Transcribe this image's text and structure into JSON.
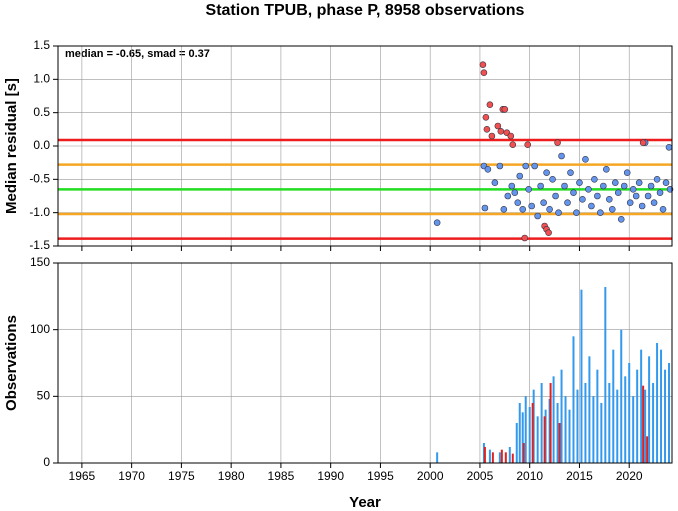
{
  "chart_data": [
    {
      "type": "scatter",
      "title": "Station TPUB, phase P, 8958 observations",
      "ylabel": "Median residual [s]",
      "annotation": "median = -0.65, smad = 0.37",
      "xlim": [
        1962.6,
        2024.3
      ],
      "xticks": [
        1965,
        1970,
        1975,
        1980,
        1985,
        1990,
        1995,
        2000,
        2005,
        2010,
        2015,
        2020
      ],
      "ylim": [
        -1.5,
        1.5
      ],
      "yticks": [
        {
          "value": -1.5,
          "label": "-1.5"
        },
        {
          "value": -1,
          "label": "-1.0"
        },
        -0.5,
        {
          "value": 0,
          "label": "0.0"
        },
        0.5,
        {
          "value": 1,
          "label": "1.0"
        },
        1.5
      ],
      "grid": true,
      "hlines": [
        {
          "value": 0.09,
          "color": "#ee1c1c"
        },
        {
          "value": -1.39,
          "color": "#ee1c1c"
        },
        {
          "value": -0.28,
          "color": "#f5a623"
        },
        {
          "value": -1.02,
          "color": "#f5a623"
        },
        {
          "value": -0.65,
          "color": "#22dd22"
        }
      ],
      "series": [
        {
          "color": "#6495ed",
          "x": [
            2000.7,
            2005.4,
            2005.5,
            2005.8,
            2006.5,
            2007,
            2007.4,
            2007.8,
            2008.2,
            2008.5,
            2008.8,
            2009,
            2009.3,
            2009.6,
            2009.9,
            2010.2,
            2010.5,
            2010.8,
            2011.1,
            2011.4,
            2011.7,
            2012,
            2012.3,
            2012.6,
            2012.9,
            2013.2,
            2013.5,
            2013.8,
            2014.1,
            2014.4,
            2014.7,
            2015,
            2015.3,
            2015.6,
            2015.9,
            2016.2,
            2016.5,
            2016.8,
            2017.1,
            2017.4,
            2017.7,
            2018,
            2018.3,
            2018.6,
            2018.9,
            2019.2,
            2019.5,
            2019.8,
            2020.1,
            2020.4,
            2020.7,
            2021,
            2021.3,
            2021.6,
            2021.9,
            2022.2,
            2022.5,
            2022.8,
            2023.1,
            2023.4,
            2023.7,
            2024,
            2024.1
          ],
          "values": [
            -1.15,
            -0.3,
            -0.93,
            -0.35,
            -0.55,
            -0.3,
            -0.95,
            -0.75,
            -0.6,
            -0.7,
            -0.85,
            -0.45,
            -0.95,
            -0.3,
            -0.65,
            -0.9,
            -0.3,
            -1.05,
            -0.6,
            -0.85,
            -0.4,
            -0.95,
            -0.5,
            -0.75,
            -1.0,
            -0.15,
            -0.6,
            -0.85,
            -0.4,
            -0.7,
            -1.0,
            -0.55,
            -0.8,
            -0.2,
            -0.65,
            -0.9,
            -0.5,
            -0.75,
            -1.0,
            -0.6,
            -0.35,
            -0.8,
            -0.95,
            -0.55,
            -0.7,
            -1.1,
            -0.6,
            -0.4,
            -0.85,
            -0.65,
            -0.75,
            -0.55,
            -0.9,
            0.05,
            -0.75,
            -0.6,
            -0.85,
            -0.5,
            -0.7,
            -0.95,
            -0.55,
            -0.02,
            -0.65
          ]
        },
        {
          "color": "#f05050",
          "x": [
            2005.3,
            2005.4,
            2005.6,
            2005.7,
            2006,
            2006.2,
            2006.8,
            2007.1,
            2007.3,
            2007.5,
            2007.7,
            2008.1,
            2008.3,
            2009.5,
            2009.8,
            2011.5,
            2011.7,
            2011.9,
            2012.8,
            2021.4
          ],
          "values": [
            1.22,
            1.1,
            0.43,
            0.25,
            0.62,
            0.15,
            0.3,
            0.22,
            0.55,
            0.55,
            0.2,
            0.15,
            0.02,
            -1.38,
            0.02,
            -1.2,
            -1.25,
            -1.3,
            0.05,
            0.05
          ]
        }
      ]
    },
    {
      "type": "bar",
      "xlabel": "Year",
      "ylabel": "Observations",
      "xlim": [
        1962.6,
        2024.3
      ],
      "xticks": [
        1965,
        1970,
        1975,
        1980,
        1985,
        1990,
        1995,
        2000,
        2005,
        2010,
        2015,
        2020
      ],
      "ylim": [
        0,
        150
      ],
      "yticks": [
        0,
        50,
        100,
        150
      ],
      "grid": true,
      "series": [
        {
          "color": "#3399ee",
          "x": [
            2000.7,
            2005.4,
            2006,
            2007,
            2008,
            2008.7,
            2009,
            2009.3,
            2009.6,
            2010,
            2010.4,
            2010.8,
            2011.2,
            2011.6,
            2012,
            2012.4,
            2012.8,
            2013.2,
            2013.6,
            2014,
            2014.4,
            2014.8,
            2015.2,
            2015.6,
            2016,
            2016.4,
            2016.8,
            2017.2,
            2017.6,
            2018,
            2018.4,
            2018.8,
            2019.2,
            2019.6,
            2020,
            2020.4,
            2020.8,
            2021.2,
            2021.6,
            2022,
            2022.4,
            2022.8,
            2023.2,
            2023.6,
            2024
          ],
          "values": [
            8,
            15,
            10,
            8,
            12,
            30,
            45,
            38,
            50,
            42,
            55,
            35,
            60,
            40,
            48,
            65,
            45,
            70,
            50,
            40,
            95,
            55,
            130,
            60,
            80,
            50,
            70,
            45,
            132,
            60,
            85,
            55,
            100,
            65,
            75,
            50,
            70,
            85,
            55,
            80,
            60,
            90,
            85,
            70,
            75
          ]
        },
        {
          "color": "#dd2222",
          "x": [
            2005.5,
            2006.3,
            2007.2,
            2007.6,
            2008.3,
            2009.4,
            2010.3,
            2011.5,
            2012.1,
            2013,
            2021.4,
            2021.8
          ],
          "values": [
            12,
            8,
            10,
            8,
            7,
            15,
            45,
            35,
            60,
            30,
            58,
            20
          ]
        }
      ]
    }
  ]
}
